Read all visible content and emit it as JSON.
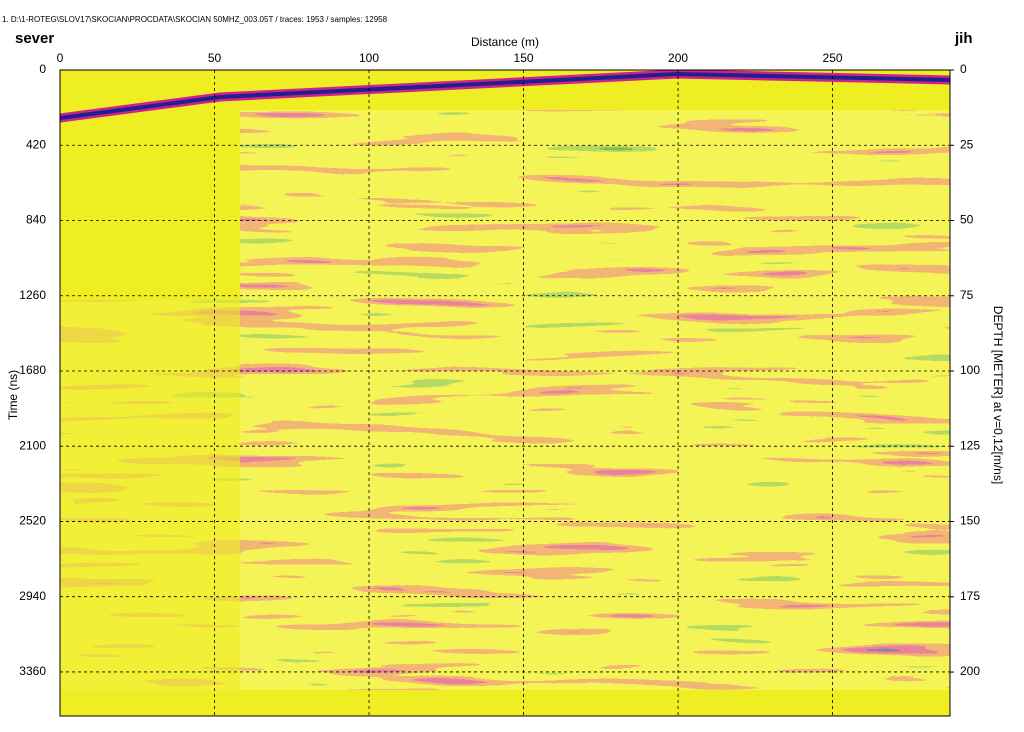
{
  "chart_data": {
    "type": "radargram",
    "header": "1. D:\\1-ROTEG\\SLOV17\\SKOCIAN\\PROCDATA\\SKOCIAN 50MHZ_003.05T / traces: 1953 / samples: 12958",
    "left_label": "sever",
    "right_label": "jih",
    "xlabel": "Distance (m)",
    "ylabel": "Time (ns)",
    "y2label": "DEPTH [METER] at v=0,12[m/ns]",
    "xlim": [
      0,
      288
    ],
    "xticks": [
      0,
      50,
      100,
      150,
      200,
      250
    ],
    "ylim": [
      0,
      3606
    ],
    "yticks": [
      0,
      420,
      840,
      1260,
      1680,
      2100,
      2520,
      2940,
      3360
    ],
    "y2lim": [
      0,
      214.6
    ],
    "y2ticks": [
      0,
      25,
      50,
      75,
      100,
      125,
      150,
      175,
      200
    ],
    "grid": true
  }
}
